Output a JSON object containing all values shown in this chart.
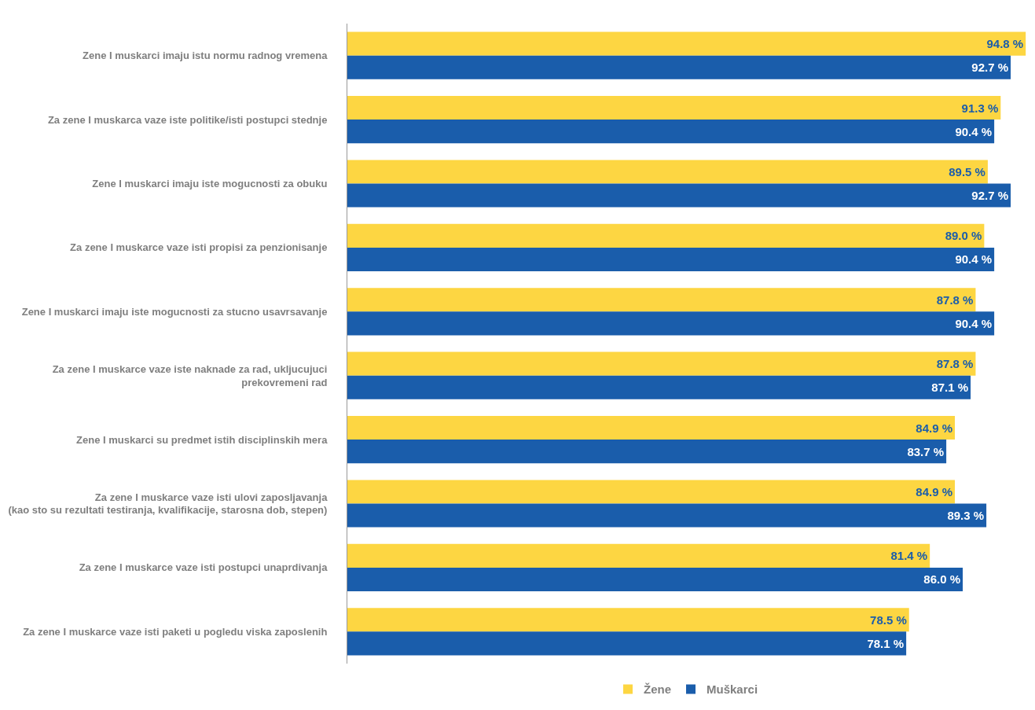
{
  "chart_data": {
    "type": "bar",
    "orientation": "horizontal",
    "categories": [
      "Zene I muskarci imaju istu normu radnog vremena",
      "Za zene I muskarca vaze iste politike/isti postupci stednje",
      "Zene I muskarci imaju iste mogucnosti za obuku",
      "Za zene I muskarce vaze isti propisi za penzionisanje",
      "Zene I muskarci imaju iste mogucnosti za stucno usavrsavanje",
      "Za zene I muskarce vaze iste naknade za rad, ukljucujuci prekovremeni rad",
      "Zene I muskarci su predmet istih disciplinskih mera",
      "Za zene I muskarce vaze isti ulovi zaposljavanja (kao sto su rezultati testiranja, kvalifikacije, starosna dob, stepen)",
      "Za zene I muskarce vaze isti postupci unaprdivanja",
      "Za zene I muskarce vaze isti paketi u pogledu viska zaposlenih"
    ],
    "series": [
      {
        "name": "Žene",
        "color": "#fdd642",
        "values": [
          94.8,
          91.3,
          89.5,
          89.0,
          87.8,
          87.8,
          84.9,
          84.9,
          81.4,
          78.5
        ],
        "value_labels": [
          "94.8 %",
          "91.3 %",
          "89.5 %",
          "89.0 %",
          "87.8 %",
          "87.8 %",
          "84.9 %",
          "84.9 %",
          "81.4 %",
          "78.5 %"
        ]
      },
      {
        "name": "Muškarci",
        "color": "#1a5dab",
        "values": [
          92.7,
          90.4,
          92.7,
          90.4,
          90.4,
          87.1,
          83.7,
          89.3,
          86.0,
          78.1
        ],
        "value_labels": [
          "92.7 %",
          "90.4 %",
          "92.7 %",
          "90.4 %",
          "90.4 %",
          "87.1 %",
          "83.7 %",
          "89.3 %",
          "86.0 %",
          "78.1 %"
        ]
      }
    ],
    "xlim": [
      0,
      95
    ],
    "tick_labels": "y",
    "legend": "bottom"
  }
}
